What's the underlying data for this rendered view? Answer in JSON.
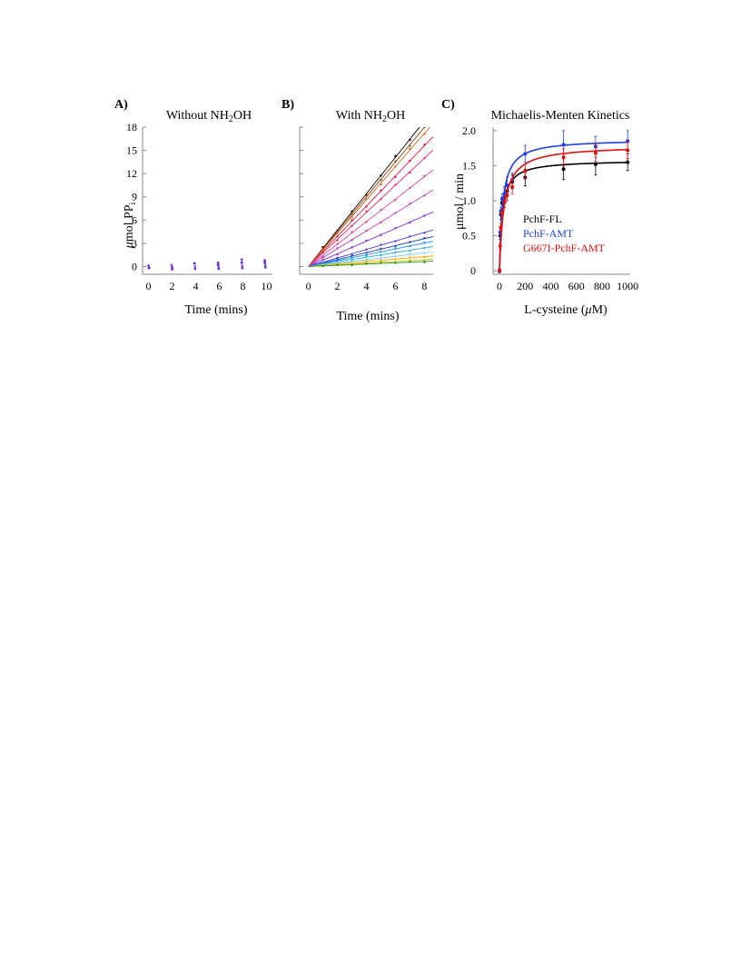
{
  "figure": {
    "panel_a_letter": "A)",
    "panel_b_letter": "B)",
    "panel_c_letter": "C)"
  },
  "chart_data": [
    {
      "type": "scatter",
      "panel": "A)",
      "title_prefix": "Without NH",
      "title_sub": "2",
      "title_suffix": "OH",
      "ylabel_mu": "μ",
      "ylabel_main": "mol  PP",
      "ylabel_sub": "i",
      "xlabel": "Time (mins)",
      "xlim": [
        -0.5,
        10.5
      ],
      "ylim": [
        -1,
        18
      ],
      "xticks": [
        0,
        2,
        4,
        6,
        8,
        10
      ],
      "yticks": [
        0,
        3,
        6,
        9,
        12,
        15,
        18
      ],
      "grid": false,
      "colors": [
        "#7a2be0",
        "#3b2bd9",
        "#b040e0",
        "#5a3ad0"
      ],
      "points": [
        {
          "x": 0,
          "y": 0.1
        },
        {
          "x": 0.05,
          "y": -0.2
        },
        {
          "x": 1.95,
          "y": 0.2
        },
        {
          "x": 2.0,
          "y": -0.1
        },
        {
          "x": 2.0,
          "y": -0.35
        },
        {
          "x": 3.9,
          "y": 0.4
        },
        {
          "x": 3.95,
          "y": 0.0
        },
        {
          "x": 3.95,
          "y": -0.3
        },
        {
          "x": 5.9,
          "y": 0.5
        },
        {
          "x": 5.9,
          "y": 0.2
        },
        {
          "x": 5.95,
          "y": -0.1
        },
        {
          "x": 5.95,
          "y": -0.3
        },
        {
          "x": 7.9,
          "y": 0.9
        },
        {
          "x": 7.9,
          "y": 0.5
        },
        {
          "x": 7.95,
          "y": 0.1
        },
        {
          "x": 7.95,
          "y": -0.2
        },
        {
          "x": 9.85,
          "y": 0.8
        },
        {
          "x": 9.85,
          "y": 0.5
        },
        {
          "x": 9.9,
          "y": 0.2
        },
        {
          "x": 9.9,
          "y": -0.1
        }
      ]
    },
    {
      "type": "line",
      "panel": "B)",
      "title_prefix": "With NH",
      "title_sub": "2",
      "title_suffix": "OH",
      "xlabel": "Time (mins)",
      "xlim": [
        -0.6,
        8.6
      ],
      "ylim": [
        -1,
        18
      ],
      "xticks": [
        0,
        2,
        4,
        6,
        8
      ],
      "grid": false,
      "series": [
        {
          "color": "#000000",
          "slope": 2.35
        },
        {
          "color": "#8b4513",
          "slope": 2.25
        },
        {
          "color": "#d2691e",
          "slope": 2.15
        },
        {
          "color": "#dc143c",
          "slope": 1.95
        },
        {
          "color": "#e0306a",
          "slope": 1.75
        },
        {
          "color": "#e04a9a",
          "slope": 1.45
        },
        {
          "color": "#c040c0",
          "slope": 1.15
        },
        {
          "color": "#8a2be2",
          "slope": 0.82
        },
        {
          "color": "#4b3ad8",
          "slope": 0.55
        },
        {
          "color": "#1e3fb0",
          "slope": 0.45
        },
        {
          "color": "#1e90ff",
          "slope": 0.38
        },
        {
          "color": "#20b2d0",
          "slope": 0.3
        },
        {
          "color": "#7fd0f0",
          "slope": 0.22
        },
        {
          "color": "#ffa500",
          "slope": 0.16
        },
        {
          "color": "#c8c800",
          "slope": 0.11
        },
        {
          "color": "#228b22",
          "slope": 0.08
        }
      ],
      "x": [
        1,
        2,
        3,
        4,
        5,
        6,
        7,
        8
      ]
    },
    {
      "type": "line",
      "panel": "C)",
      "title": "Michaelis-Menten Kinetics",
      "xlabel_prefix": "L-cysteine (",
      "xlabel_mu": "μ",
      "xlabel_suffix": "M)",
      "ylabel": "μmol / min",
      "xlim": [
        -50,
        1020
      ],
      "ylim": [
        -0.05,
        2.05
      ],
      "xticks": [
        0,
        200,
        400,
        600,
        800,
        1000
      ],
      "yticks": [
        0,
        0.5,
        1.0,
        1.5,
        2.0
      ],
      "ytick_labels": [
        "0",
        "0.5",
        "1.0",
        "1.5",
        "2.0"
      ],
      "grid": false,
      "legend_position": "center-left",
      "x": [
        0,
        5,
        10,
        20,
        40,
        60,
        100,
        200,
        500,
        750,
        1000
      ],
      "series": [
        {
          "name": "PchF-FL",
          "color": "#000000",
          "vmax": 1.58,
          "km": 22,
          "y": [
            0.0,
            0.5,
            0.8,
            0.97,
            1.1,
            1.14,
            1.27,
            1.33,
            1.45,
            1.52,
            1.55
          ],
          "err": [
            0.02,
            0.05,
            0.07,
            0.08,
            0.08,
            0.08,
            0.1,
            0.12,
            0.15,
            0.15,
            0.12
          ]
        },
        {
          "name": "PchF-AMT",
          "color": "#1f3fe0",
          "vmax": 1.88,
          "km": 25,
          "y": [
            0.0,
            0.55,
            0.85,
            1.02,
            1.1,
            1.22,
            1.3,
            1.67,
            1.8,
            1.77,
            1.85
          ],
          "err": [
            0.03,
            0.05,
            0.06,
            0.08,
            0.1,
            0.12,
            0.1,
            0.12,
            0.2,
            0.15,
            0.15
          ]
        },
        {
          "name": "G667I-PchF-AMT",
          "color": "#e01010",
          "vmax": 1.79,
          "km": 35,
          "y": [
            0.0,
            0.35,
            0.62,
            0.82,
            0.98,
            1.08,
            1.2,
            1.42,
            1.62,
            1.68,
            1.72
          ],
          "err": [
            0.02,
            0.04,
            0.06,
            0.06,
            0.08,
            0.08,
            0.1,
            0.1,
            0.12,
            0.12,
            0.12
          ]
        }
      ]
    }
  ]
}
